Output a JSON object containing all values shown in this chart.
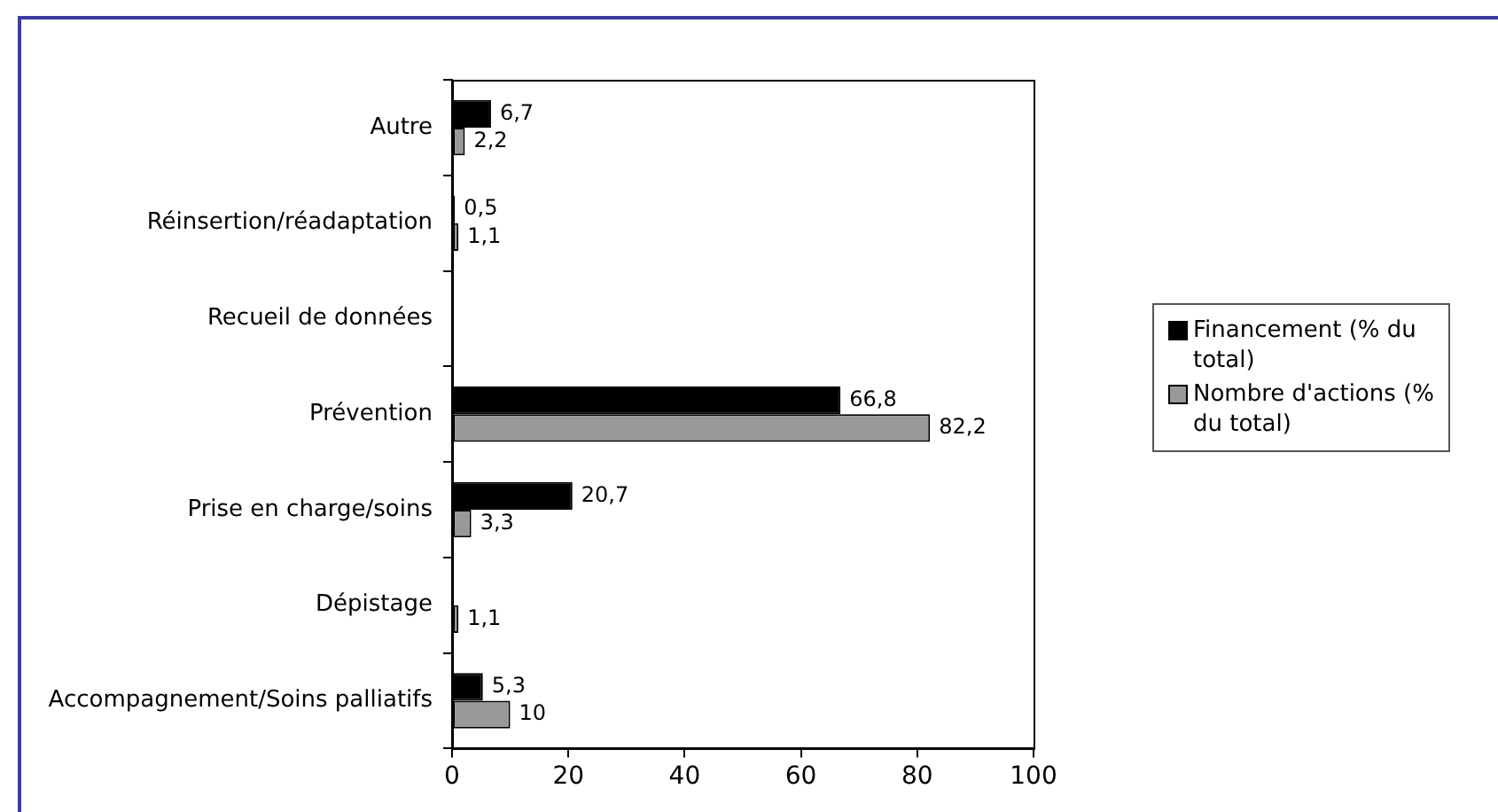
{
  "chart_data": {
    "type": "bar",
    "orientation": "horizontal",
    "categories": [
      "Autre",
      "Réinsertion/réadaptation",
      "Recueil de données",
      "Prévention",
      "Prise en charge/soins",
      "Dépistage",
      "Accompagnement/Soins palliatifs"
    ],
    "series": [
      {
        "name": "Financement (% du total)",
        "color": "#000000",
        "values": [
          6.7,
          0.5,
          null,
          66.8,
          20.7,
          null,
          5.3
        ],
        "value_labels": [
          "6,7",
          "0,5",
          null,
          "66,8",
          "20,7",
          null,
          "5,3"
        ]
      },
      {
        "name": "Nombre d'actions (% du total)",
        "color": "#999999",
        "values": [
          2.2,
          1.1,
          null,
          82.2,
          3.3,
          1.1,
          10
        ],
        "value_labels": [
          "2,2",
          "1,1",
          null,
          "82,2",
          "3,3",
          "1,1",
          "10"
        ]
      }
    ],
    "xlim": [
      0,
      100
    ],
    "xticks": [
      0,
      20,
      40,
      60,
      80,
      100
    ],
    "grid": false,
    "legend": "right"
  }
}
